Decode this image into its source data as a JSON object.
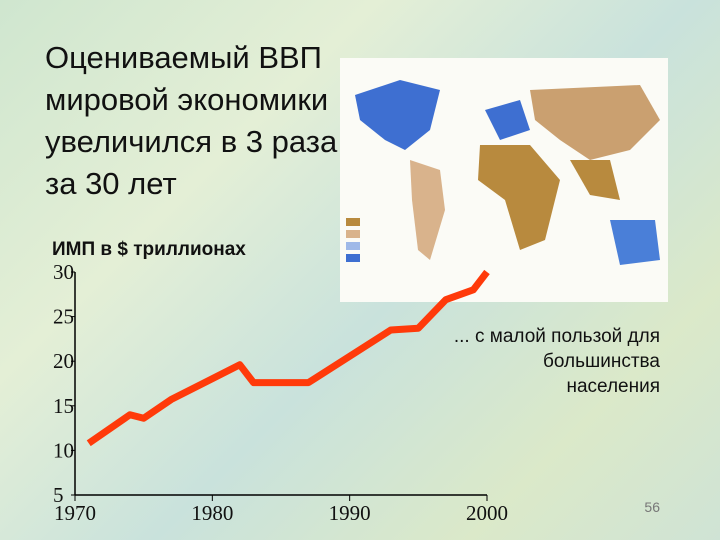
{
  "title": "Оцениваемый ВВП мировой экономики увеличился в 3 раза за 30 лет",
  "page_number": "56",
  "chart_data": {
    "type": "line",
    "y_label": "ИМП в $ триллионах",
    "annotation": "... с малой пользой для большинства населения",
    "x": [
      1971,
      1974,
      1975,
      1977,
      1982,
      1983,
      1987,
      1993,
      1995,
      1997,
      1999,
      2000
    ],
    "series": [
      {
        "name": "ИМП",
        "color": "#ff3a0a",
        "values": [
          10.8,
          14,
          13.6,
          15.7,
          19.6,
          17.6,
          17.6,
          23.5,
          23.7,
          26.9,
          28,
          30
        ]
      }
    ],
    "xlim": [
      1970,
      2000
    ],
    "xticks": [
      1970,
      1980,
      1990,
      2000
    ],
    "ylim": [
      5,
      30
    ],
    "yticks": [
      5,
      10,
      15,
      20,
      25,
      30
    ]
  }
}
